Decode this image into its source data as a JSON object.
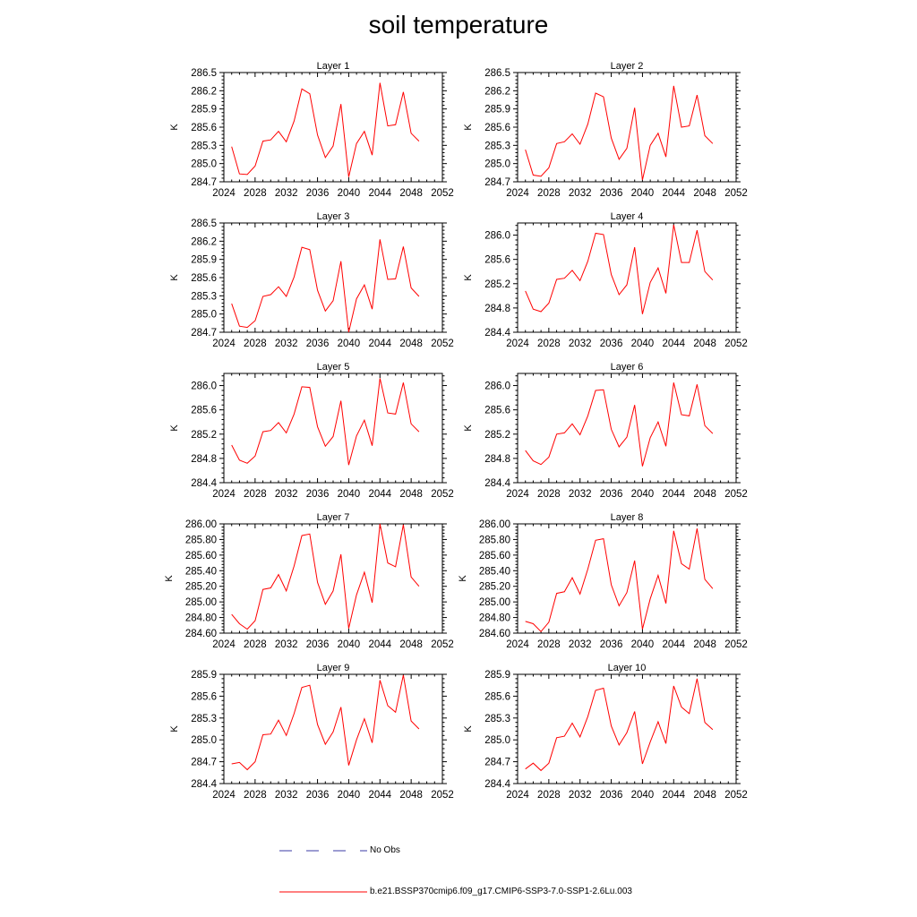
{
  "figure_title": "soil temperature",
  "legend": {
    "obs_label": "No Obs",
    "model_label": "b.e21.BSSP370cmip6.f09_g17.CMIP6-SSP3-7.0-SSP1-2.6Lu.003",
    "obs_color": "#3a3aa6",
    "model_color": "#ff0000"
  },
  "chart_data": [
    {
      "type": "line",
      "title": "Layer 1",
      "xlabel": "",
      "ylabel": "K",
      "xlim": [
        2024,
        2052
      ],
      "ylim": [
        284.7,
        286.5
      ],
      "xticks": [
        2024,
        2028,
        2032,
        2036,
        2040,
        2044,
        2048,
        2052
      ],
      "yticks": [
        "284.7",
        "285.0",
        "285.3",
        "285.6",
        "285.9",
        "286.2",
        "286.5"
      ],
      "x": [
        2025,
        2026,
        2027,
        2028,
        2029,
        2030,
        2031,
        2032,
        2033,
        2034,
        2035,
        2036,
        2037,
        2038,
        2039,
        2040,
        2041,
        2042,
        2043,
        2044,
        2045,
        2046,
        2047,
        2048,
        2049
      ],
      "series": [
        {
          "name": "b.e21.BSSP370cmip6.f09_g17.CMIP6-SSP3-7.0-SSP1-2.6Lu.003",
          "values": [
            285.28,
            284.83,
            284.82,
            284.96,
            285.37,
            285.39,
            285.53,
            285.36,
            285.7,
            286.23,
            286.15,
            285.47,
            285.1,
            285.29,
            285.98,
            284.78,
            285.33,
            285.53,
            285.14,
            286.33,
            285.62,
            285.64,
            286.18,
            285.5,
            285.37
          ]
        }
      ]
    },
    {
      "type": "line",
      "title": "Layer 2",
      "xlabel": "",
      "ylabel": "K",
      "xlim": [
        2024,
        2052
      ],
      "ylim": [
        284.7,
        286.5
      ],
      "xticks": [
        2024,
        2028,
        2032,
        2036,
        2040,
        2044,
        2048,
        2052
      ],
      "yticks": [
        "284.7",
        "285.0",
        "285.3",
        "285.6",
        "285.9",
        "286.2",
        "286.5"
      ],
      "x": [
        2025,
        2026,
        2027,
        2028,
        2029,
        2030,
        2031,
        2032,
        2033,
        2034,
        2035,
        2036,
        2037,
        2038,
        2039,
        2040,
        2041,
        2042,
        2043,
        2044,
        2045,
        2046,
        2047,
        2048,
        2049
      ],
      "series": [
        {
          "name": "b.e21.BSSP370cmip6.f09_g17.CMIP6-SSP3-7.0-SSP1-2.6Lu.003",
          "values": [
            285.23,
            284.81,
            284.79,
            284.93,
            285.33,
            285.36,
            285.49,
            285.32,
            285.65,
            286.16,
            286.1,
            285.42,
            285.07,
            285.25,
            285.92,
            284.73,
            285.3,
            285.5,
            285.11,
            286.28,
            285.6,
            285.62,
            286.13,
            285.46,
            285.33
          ]
        }
      ]
    },
    {
      "type": "line",
      "title": "Layer 3",
      "xlabel": "",
      "ylabel": "K",
      "xlim": [
        2024,
        2052
      ],
      "ylim": [
        284.7,
        286.5
      ],
      "xticks": [
        2024,
        2028,
        2032,
        2036,
        2040,
        2044,
        2048,
        2052
      ],
      "yticks": [
        "284.7",
        "285.0",
        "285.3",
        "285.6",
        "285.9",
        "286.2",
        "286.5"
      ],
      "x": [
        2025,
        2026,
        2027,
        2028,
        2029,
        2030,
        2031,
        2032,
        2033,
        2034,
        2035,
        2036,
        2037,
        2038,
        2039,
        2040,
        2041,
        2042,
        2043,
        2044,
        2045,
        2046,
        2047,
        2048,
        2049
      ],
      "series": [
        {
          "name": "b.e21.BSSP370cmip6.f09_g17.CMIP6-SSP3-7.0-SSP1-2.6Lu.003",
          "values": [
            285.17,
            284.8,
            284.78,
            284.89,
            285.29,
            285.32,
            285.45,
            285.29,
            285.61,
            286.1,
            286.06,
            285.39,
            285.05,
            285.22,
            285.87,
            284.7,
            285.25,
            285.48,
            285.08,
            286.23,
            285.57,
            285.58,
            286.11,
            285.43,
            285.29
          ]
        }
      ]
    },
    {
      "type": "line",
      "title": "Layer 4",
      "xlabel": "",
      "ylabel": "K",
      "xlim": [
        2024,
        2052
      ],
      "ylim": [
        284.4,
        286.2
      ],
      "xticks": [
        2024,
        2028,
        2032,
        2036,
        2040,
        2044,
        2048,
        2052
      ],
      "yticks": [
        "284.4",
        "284.8",
        "285.2",
        "285.6",
        "286.0"
      ],
      "x": [
        2025,
        2026,
        2027,
        2028,
        2029,
        2030,
        2031,
        2032,
        2033,
        2034,
        2035,
        2036,
        2037,
        2038,
        2039,
        2040,
        2041,
        2042,
        2043,
        2044,
        2045,
        2046,
        2047,
        2048,
        2049
      ],
      "series": [
        {
          "name": "b.e21.BSSP370cmip6.f09_g17.CMIP6-SSP3-7.0-SSP1-2.6Lu.003",
          "values": [
            285.08,
            284.78,
            284.74,
            284.88,
            285.27,
            285.29,
            285.42,
            285.25,
            285.57,
            286.03,
            286.01,
            285.35,
            285.02,
            285.18,
            285.8,
            284.7,
            285.22,
            285.46,
            285.04,
            286.17,
            285.55,
            285.55,
            286.08,
            285.4,
            285.26
          ]
        }
      ]
    },
    {
      "type": "line",
      "title": "Layer 5",
      "xlabel": "",
      "ylabel": "K",
      "xlim": [
        2024,
        2052
      ],
      "ylim": [
        284.4,
        286.2
      ],
      "xticks": [
        2024,
        2028,
        2032,
        2036,
        2040,
        2044,
        2048,
        2052
      ],
      "yticks": [
        "284.4",
        "284.8",
        "285.2",
        "285.6",
        "286.0"
      ],
      "x": [
        2025,
        2026,
        2027,
        2028,
        2029,
        2030,
        2031,
        2032,
        2033,
        2034,
        2035,
        2036,
        2037,
        2038,
        2039,
        2040,
        2041,
        2042,
        2043,
        2044,
        2045,
        2046,
        2047,
        2048,
        2049
      ],
      "series": [
        {
          "name": "b.e21.BSSP370cmip6.f09_g17.CMIP6-SSP3-7.0-SSP1-2.6Lu.003",
          "values": [
            285.02,
            284.77,
            284.72,
            284.84,
            285.24,
            285.26,
            285.39,
            285.22,
            285.53,
            285.98,
            285.97,
            285.32,
            285.0,
            285.16,
            285.75,
            284.69,
            285.17,
            285.43,
            285.01,
            286.12,
            285.55,
            285.53,
            286.05,
            285.37,
            285.24
          ]
        }
      ]
    },
    {
      "type": "line",
      "title": "Layer 6",
      "xlabel": "",
      "ylabel": "K",
      "xlim": [
        2024,
        2052
      ],
      "ylim": [
        284.4,
        286.2
      ],
      "xticks": [
        2024,
        2028,
        2032,
        2036,
        2040,
        2044,
        2048,
        2052
      ],
      "yticks": [
        "284.4",
        "284.8",
        "285.2",
        "285.6",
        "286.0"
      ],
      "x": [
        2025,
        2026,
        2027,
        2028,
        2029,
        2030,
        2031,
        2032,
        2033,
        2034,
        2035,
        2036,
        2037,
        2038,
        2039,
        2040,
        2041,
        2042,
        2043,
        2044,
        2045,
        2046,
        2047,
        2048,
        2049
      ],
      "series": [
        {
          "name": "b.e21.BSSP370cmip6.f09_g17.CMIP6-SSP3-7.0-SSP1-2.6Lu.003",
          "values": [
            284.93,
            284.76,
            284.7,
            284.82,
            285.2,
            285.22,
            285.37,
            285.19,
            285.5,
            285.92,
            285.93,
            285.28,
            284.99,
            285.15,
            285.68,
            284.67,
            285.14,
            285.4,
            285.0,
            286.05,
            285.52,
            285.5,
            286.02,
            285.34,
            285.21
          ]
        }
      ]
    },
    {
      "type": "line",
      "title": "Layer 7",
      "xlabel": "",
      "ylabel": "K",
      "xlim": [
        2024,
        2052
      ],
      "ylim": [
        284.6,
        286.0
      ],
      "xticks": [
        2024,
        2028,
        2032,
        2036,
        2040,
        2044,
        2048,
        2052
      ],
      "yticks": [
        "284.60",
        "284.80",
        "285.00",
        "285.20",
        "285.40",
        "285.60",
        "285.80",
        "286.00"
      ],
      "x": [
        2025,
        2026,
        2027,
        2028,
        2029,
        2030,
        2031,
        2032,
        2033,
        2034,
        2035,
        2036,
        2037,
        2038,
        2039,
        2040,
        2041,
        2042,
        2043,
        2044,
        2045,
        2046,
        2047,
        2048,
        2049
      ],
      "series": [
        {
          "name": "b.e21.BSSP370cmip6.f09_g17.CMIP6-SSP3-7.0-SSP1-2.6Lu.003",
          "values": [
            284.84,
            284.72,
            284.65,
            284.76,
            285.16,
            285.18,
            285.35,
            285.14,
            285.46,
            285.85,
            285.87,
            285.25,
            284.97,
            285.14,
            285.61,
            284.66,
            285.09,
            285.38,
            284.99,
            286.0,
            285.5,
            285.45,
            285.99,
            285.32,
            285.2
          ]
        }
      ]
    },
    {
      "type": "line",
      "title": "Layer 8",
      "xlabel": "",
      "ylabel": "K",
      "xlim": [
        2024,
        2052
      ],
      "ylim": [
        284.6,
        286.0
      ],
      "xticks": [
        2024,
        2028,
        2032,
        2036,
        2040,
        2044,
        2048,
        2052
      ],
      "yticks": [
        "284.60",
        "284.80",
        "285.00",
        "285.20",
        "285.40",
        "285.60",
        "285.80",
        "286.00"
      ],
      "x": [
        2025,
        2026,
        2027,
        2028,
        2029,
        2030,
        2031,
        2032,
        2033,
        2034,
        2035,
        2036,
        2037,
        2038,
        2039,
        2040,
        2041,
        2042,
        2043,
        2044,
        2045,
        2046,
        2047,
        2048,
        2049
      ],
      "series": [
        {
          "name": "b.e21.BSSP370cmip6.f09_g17.CMIP6-SSP3-7.0-SSP1-2.6Lu.003",
          "values": [
            284.75,
            284.72,
            284.62,
            284.74,
            285.11,
            285.13,
            285.31,
            285.1,
            285.42,
            285.79,
            285.81,
            285.22,
            284.95,
            285.12,
            285.53,
            284.65,
            285.04,
            285.34,
            284.98,
            285.91,
            285.49,
            285.42,
            285.94,
            285.29,
            285.17
          ]
        }
      ]
    },
    {
      "type": "line",
      "title": "Layer 9",
      "xlabel": "",
      "ylabel": "K",
      "xlim": [
        2024,
        2052
      ],
      "ylim": [
        284.4,
        285.9
      ],
      "xticks": [
        2024,
        2028,
        2032,
        2036,
        2040,
        2044,
        2048,
        2052
      ],
      "yticks": [
        "284.4",
        "284.7",
        "285.0",
        "285.3",
        "285.6",
        "285.9"
      ],
      "x": [
        2025,
        2026,
        2027,
        2028,
        2029,
        2030,
        2031,
        2032,
        2033,
        2034,
        2035,
        2036,
        2037,
        2038,
        2039,
        2040,
        2041,
        2042,
        2043,
        2044,
        2045,
        2046,
        2047,
        2048,
        2049
      ],
      "series": [
        {
          "name": "b.e21.BSSP370cmip6.f09_g17.CMIP6-SSP3-7.0-SSP1-2.6Lu.003",
          "values": [
            284.67,
            284.69,
            284.59,
            284.7,
            285.07,
            285.08,
            285.27,
            285.06,
            285.36,
            285.72,
            285.75,
            285.21,
            284.94,
            285.11,
            285.45,
            284.65,
            285.0,
            285.29,
            284.96,
            285.82,
            285.47,
            285.38,
            285.89,
            285.26,
            285.15
          ]
        }
      ]
    },
    {
      "type": "line",
      "title": "Layer 10",
      "xlabel": "",
      "ylabel": "K",
      "xlim": [
        2024,
        2052
      ],
      "ylim": [
        284.4,
        285.9
      ],
      "xticks": [
        2024,
        2028,
        2032,
        2036,
        2040,
        2044,
        2048,
        2052
      ],
      "yticks": [
        "284.4",
        "284.7",
        "285.0",
        "285.3",
        "285.6",
        "285.9"
      ],
      "x": [
        2025,
        2026,
        2027,
        2028,
        2029,
        2030,
        2031,
        2032,
        2033,
        2034,
        2035,
        2036,
        2037,
        2038,
        2039,
        2040,
        2041,
        2042,
        2043,
        2044,
        2045,
        2046,
        2047,
        2048,
        2049
      ],
      "series": [
        {
          "name": "b.e21.BSSP370cmip6.f09_g17.CMIP6-SSP3-7.0-SSP1-2.6Lu.003",
          "values": [
            284.6,
            284.68,
            284.58,
            284.68,
            285.03,
            285.05,
            285.23,
            285.04,
            285.32,
            285.68,
            285.71,
            285.19,
            284.93,
            285.1,
            285.39,
            284.67,
            284.97,
            285.25,
            284.95,
            285.74,
            285.45,
            285.36,
            285.84,
            285.24,
            285.14
          ]
        }
      ]
    }
  ]
}
